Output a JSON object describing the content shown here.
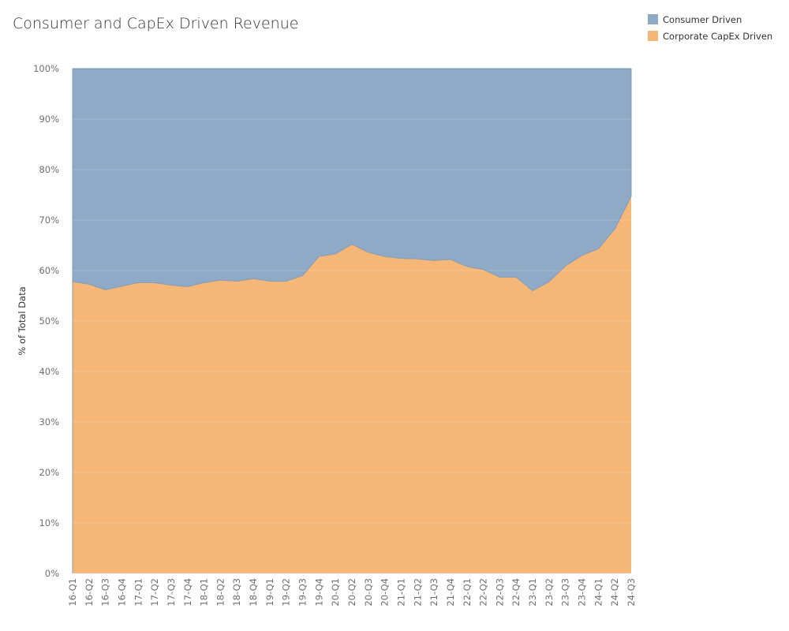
{
  "title": "Consumer and CapEx Driven Revenue",
  "legend": [
    {
      "label": "Consumer Driven",
      "color": "#8eaac7"
    },
    {
      "label": "Corporate CapEx Driven",
      "color": "#f5b778"
    }
  ],
  "chart_data": {
    "type": "area",
    "stacked": "percent",
    "title": "Consumer and CapEx Driven Revenue",
    "xlabel": "",
    "ylabel": "% of Total Data",
    "ylim": [
      0,
      100
    ],
    "yticks": [
      "0%",
      "10%",
      "20%",
      "30%",
      "40%",
      "50%",
      "60%",
      "70%",
      "80%",
      "90%",
      "100%"
    ],
    "categories": [
      "16-Q1",
      "16-Q2",
      "16-Q3",
      "16-Q4",
      "17-Q1",
      "17-Q2",
      "17-Q3",
      "17-Q4",
      "18-Q1",
      "18-Q2",
      "18-Q3",
      "18-Q4",
      "19-Q1",
      "19-Q2",
      "19-Q3",
      "19-Q4",
      "20-Q1",
      "20-Q2",
      "20-Q3",
      "20-Q4",
      "21-Q1",
      "21-Q2",
      "21-Q3",
      "21-Q4",
      "22-Q1",
      "22-Q2",
      "22-Q3",
      "22-Q4",
      "23-Q1",
      "23-Q2",
      "23-Q3",
      "23-Q4",
      "24-Q1",
      "24-Q2",
      "24-Q3"
    ],
    "series": [
      {
        "name": "Corporate CapEx Driven",
        "color": "#f5b778",
        "values": [
          57.8,
          57.3,
          56.2,
          56.9,
          57.6,
          57.6,
          57.1,
          56.8,
          57.6,
          58.1,
          57.9,
          58.4,
          57.9,
          57.9,
          59.0,
          62.8,
          63.3,
          65.2,
          63.6,
          62.8,
          62.4,
          62.3,
          62.0,
          62.2,
          60.8,
          60.2,
          58.7,
          58.7,
          56.0,
          57.8,
          60.9,
          63.0,
          64.3,
          68.2,
          74.7
        ]
      },
      {
        "name": "Consumer Driven",
        "color": "#8eaac7",
        "values": [
          42.2,
          42.7,
          43.8,
          43.1,
          42.4,
          42.4,
          42.9,
          43.2,
          42.4,
          41.9,
          42.1,
          41.6,
          42.1,
          42.1,
          41.0,
          37.2,
          36.7,
          34.8,
          36.4,
          37.2,
          37.6,
          37.7,
          38.0,
          37.8,
          39.2,
          39.8,
          41.3,
          41.3,
          44.0,
          42.2,
          39.1,
          37.0,
          35.7,
          31.8,
          25.3
        ]
      }
    ],
    "grid": true,
    "legend_position": "top-right"
  }
}
